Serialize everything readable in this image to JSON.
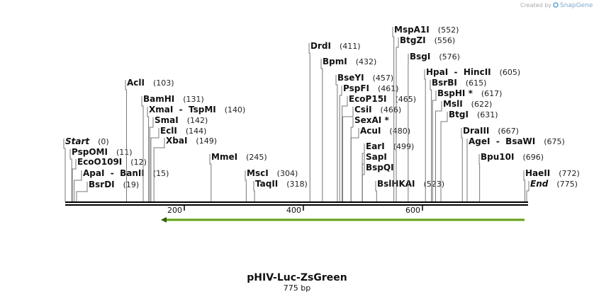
{
  "credit": {
    "prefix": "Created by",
    "brand": "SnapGene"
  },
  "map": {
    "title": "pHIV-Luc-ZsGreen",
    "subtitle": "775 bp",
    "ruler_ticks": [
      200,
      400,
      600
    ],
    "sites": [
      {
        "name": "Start",
        "position": 0,
        "label": "(0)",
        "italic": true
      },
      {
        "name": "PspOMI",
        "position": 11,
        "label": "(11)"
      },
      {
        "name": "EcoO109I",
        "position": 12,
        "label": "(12)"
      },
      {
        "name": "ApaI  -  BanII",
        "position": 15,
        "label": "(15)"
      },
      {
        "name": "BsrDI",
        "position": 19,
        "label": "(19)"
      },
      {
        "name": "AclI",
        "position": 103,
        "label": "(103)"
      },
      {
        "name": "BamHI",
        "position": 131,
        "label": "(131)"
      },
      {
        "name": "XmaI  -  TspMI",
        "position": 140,
        "label": "(140)"
      },
      {
        "name": "SmaI",
        "position": 142,
        "label": "(142)"
      },
      {
        "name": "EclI",
        "position": 144,
        "label": "(144)"
      },
      {
        "name": "XbaI",
        "position": 149,
        "label": "(149)"
      },
      {
        "name": "MmeI",
        "position": 245,
        "label": "(245)"
      },
      {
        "name": "MscI",
        "position": 304,
        "label": "(304)"
      },
      {
        "name": "TaqII",
        "position": 318,
        "label": "(318)"
      },
      {
        "name": "DrdI",
        "position": 411,
        "label": "(411)"
      },
      {
        "name": "BpmI",
        "position": 432,
        "label": "(432)"
      },
      {
        "name": "BseYI",
        "position": 457,
        "label": "(457)"
      },
      {
        "name": "PspFI",
        "position": 461,
        "label": "(461)"
      },
      {
        "name": "EcoP15I",
        "position": 465,
        "label": "(465)"
      },
      {
        "name": "CsiI",
        "position": 466,
        "label": "(466)"
      },
      {
        "name": "SexAI *",
        "position": 480
      },
      {
        "name": "AcuI",
        "position": 480,
        "label": "(480)"
      },
      {
        "name": "EarI",
        "position": 499,
        "label": "(499)"
      },
      {
        "name": "SapI",
        "position": 499
      },
      {
        "name": "BspQI",
        "position": 499
      },
      {
        "name": "BslHKAI",
        "position": 523,
        "label": "(523)"
      },
      {
        "name": "MspA1I",
        "position": 552,
        "label": "(552)"
      },
      {
        "name": "BtgZI",
        "position": 556,
        "label": "(556)"
      },
      {
        "name": "BsgI",
        "position": 576,
        "label": "(576)"
      },
      {
        "name": "HpaI  -  HincII",
        "position": 605,
        "label": "(605)"
      },
      {
        "name": "BsrBI",
        "position": 615,
        "label": "(615)"
      },
      {
        "name": "BspHI *",
        "position": 617,
        "label": "(617)"
      },
      {
        "name": "MslI",
        "position": 622,
        "label": "(622)"
      },
      {
        "name": "BtgI",
        "position": 631,
        "label": "(631)"
      },
      {
        "name": "DraIII",
        "position": 667,
        "label": "(667)"
      },
      {
        "name": "AgeI  -  BsaWI",
        "position": 675,
        "label": "(675)"
      },
      {
        "name": "Bpu10I",
        "position": 696,
        "label": "(696)"
      },
      {
        "name": "HaeII",
        "position": 772,
        "label": "(772)"
      },
      {
        "name": "End",
        "position": 775,
        "label": "(775)",
        "italic": true
      }
    ]
  }
}
